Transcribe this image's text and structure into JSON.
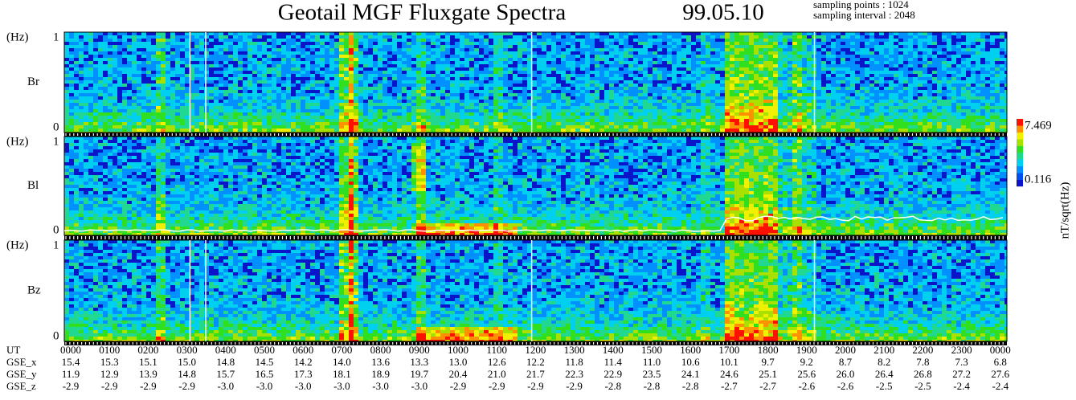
{
  "header": {
    "title": "Geotail MGF Fluxgate Spectra",
    "date": "99.05.10",
    "sampling_points": "sampling points : 1024",
    "sampling_interval": "sampling interval : 2048"
  },
  "panels": [
    {
      "unit": "(Hz)",
      "top": "1",
      "bottom": "0",
      "component": "Br"
    },
    {
      "unit": "(Hz)",
      "top": "1",
      "bottom": "0",
      "component": "Bl"
    },
    {
      "unit": "(Hz)",
      "top": "1",
      "bottom": "0",
      "component": "Bz"
    }
  ],
  "colorbar": {
    "max": "7.469",
    "min": "0.116",
    "unit": "nT/sqrt(Hz)"
  },
  "ephemeris": {
    "rows": [
      {
        "label": "UT",
        "values": [
          "0000",
          "0100",
          "0200",
          "0300",
          "0400",
          "0500",
          "0600",
          "0700",
          "0800",
          "0900",
          "1000",
          "1100",
          "1200",
          "1300",
          "1400",
          "1500",
          "1600",
          "1700",
          "1800",
          "1900",
          "2000",
          "2100",
          "2200",
          "2300",
          "0000"
        ]
      },
      {
        "label": "GSE_x",
        "values": [
          "15.4",
          "15.3",
          "15.1",
          "15.0",
          "14.8",
          "14.5",
          "14.2",
          "14.0",
          "13.6",
          "13.3",
          "13.0",
          "12.6",
          "12.2",
          "11.8",
          "11.4",
          "11.0",
          "10.6",
          "10.1",
          "9.7",
          "9.2",
          "8.7",
          "8.2",
          "7.8",
          "7.3",
          "6.8"
        ]
      },
      {
        "label": "GSE_y",
        "values": [
          "11.9",
          "12.9",
          "13.9",
          "14.8",
          "15.7",
          "16.5",
          "17.3",
          "18.1",
          "18.9",
          "19.7",
          "20.4",
          "21.0",
          "21.7",
          "22.3",
          "22.9",
          "23.5",
          "24.1",
          "24.6",
          "25.1",
          "25.6",
          "26.0",
          "26.4",
          "26.8",
          "27.2",
          "27.6"
        ]
      },
      {
        "label": "GSE_z",
        "values": [
          "-2.9",
          "-2.9",
          "-2.9",
          "-2.9",
          "-3.0",
          "-3.0",
          "-3.0",
          "-3.0",
          "-3.0",
          "-3.0",
          "-2.9",
          "-2.9",
          "-2.9",
          "-2.9",
          "-2.8",
          "-2.8",
          "-2.8",
          "-2.7",
          "-2.7",
          "-2.6",
          "-2.6",
          "-2.5",
          "-2.5",
          "-2.4",
          "-2.4"
        ]
      }
    ]
  }
}
